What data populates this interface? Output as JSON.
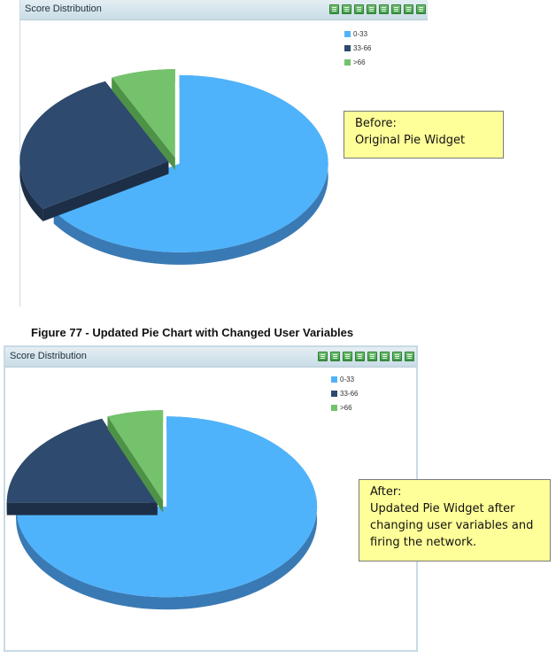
{
  "caption": "Figure 77 - Updated Pie Chart with Changed User Variables",
  "widgets": [
    {
      "title": "Score Distribution",
      "toolbar": [
        "document-icon",
        "blank-page-icon",
        "monitor-icon",
        "mail-icon",
        "chat-icon",
        "copy-icon",
        "camera-icon",
        "stack-icon"
      ],
      "note": {
        "lines": [
          "Before:",
          "Original Pie Widget"
        ]
      }
    },
    {
      "title": "Score Distribution",
      "toolbar": [
        "document-icon",
        "blank-page-icon",
        "monitor-icon",
        "mail-icon",
        "chat-icon",
        "copy-icon",
        "camera-icon",
        "stack-icon"
      ],
      "note": {
        "lines": [
          "After:",
          "Updated Pie Widget after",
          "changing user variables and",
          "firing the network."
        ]
      }
    }
  ],
  "colors": {
    "light_blue": "#4fb3fb",
    "navy": "#2e4a6e",
    "green": "#74c36c"
  },
  "chart_data": [
    {
      "type": "pie",
      "categories": [
        "0-33",
        "33-66",
        ">66"
      ],
      "values": [
        66,
        27,
        7
      ],
      "legend": "top-right"
    },
    {
      "type": "pie",
      "categories": [
        "0-33",
        "33-66",
        ">66"
      ],
      "values": [
        75,
        19,
        6
      ],
      "legend": "top-right"
    }
  ]
}
